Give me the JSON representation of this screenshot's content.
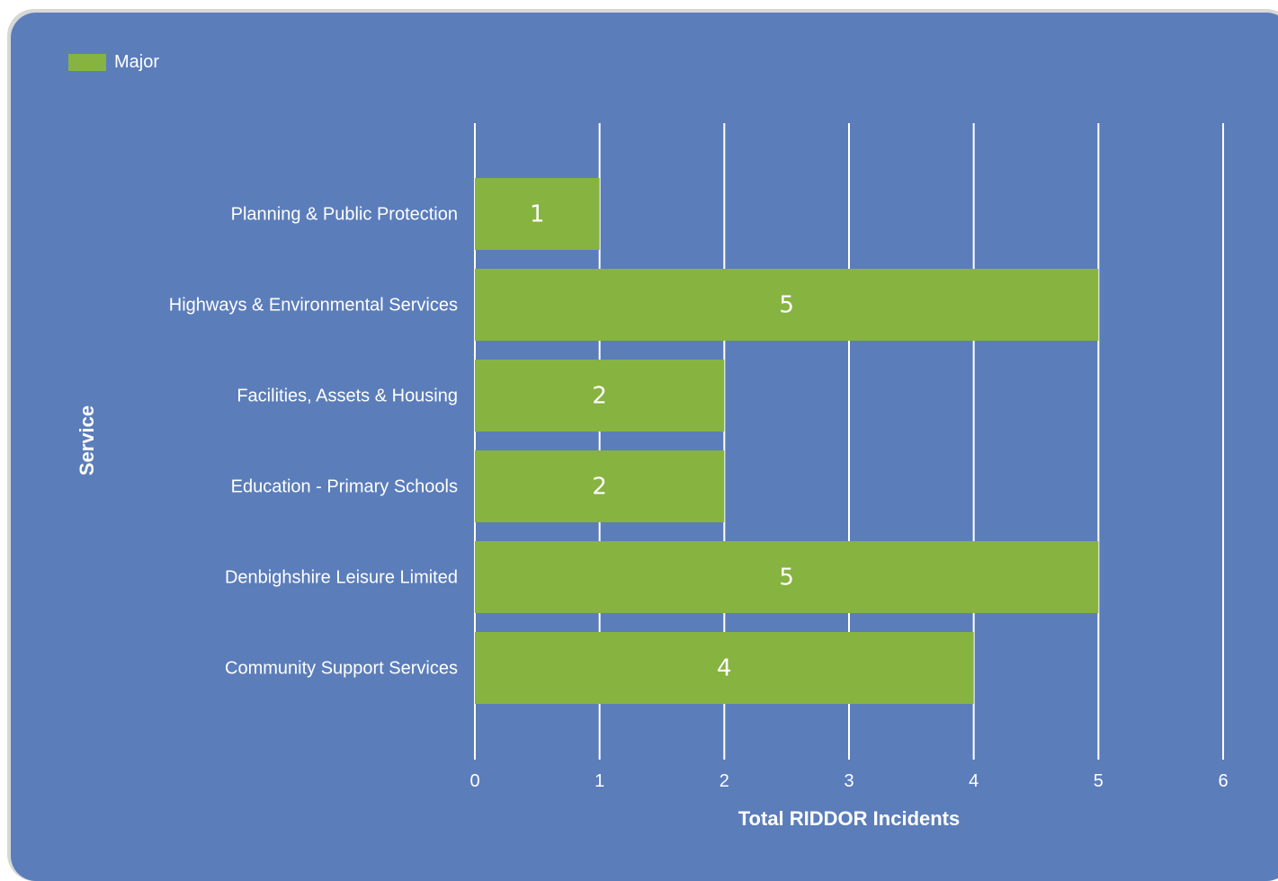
{
  "colors": {
    "background": "#5b7dba",
    "bar": "#87b341",
    "gridline": "#ffffff",
    "text": "#ffffff"
  },
  "legend": {
    "entries": [
      {
        "label": "Major",
        "color": "#87b341"
      }
    ]
  },
  "chart_data": {
    "type": "bar",
    "orientation": "horizontal",
    "categories": [
      "Planning & Public Protection",
      "Highways & Environmental Services",
      "Facilities, Assets & Housing",
      "Education - Primary Schools",
      "Denbighshire Leisure Limited",
      "Community Support Services"
    ],
    "series": [
      {
        "name": "Major",
        "values": [
          1,
          5,
          2,
          2,
          5,
          4
        ]
      }
    ],
    "xlabel": "Total RIDDOR Incidents",
    "ylabel": "Service",
    "xlim": [
      0,
      6
    ],
    "xticks": [
      "0",
      "1",
      "2",
      "3",
      "4",
      "5",
      "6"
    ],
    "data_labels": [
      "1",
      "5",
      "2",
      "2",
      "5",
      "4"
    ],
    "grid": "vertical",
    "legend_position": "top-left"
  }
}
